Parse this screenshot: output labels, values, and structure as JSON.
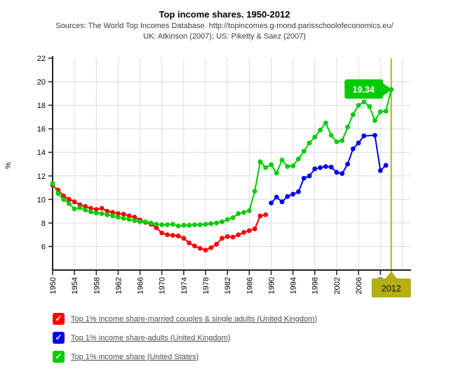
{
  "header": {
    "title": "Top income shares. 1950-2012",
    "subtitle1": "Sources: The World Top Incomes Database. http://topincomes.g-mond.parisschoolofeconomics.eu/",
    "subtitle2": "UK: Atkinson (2007); US: Piketty & Saez (2007)"
  },
  "chart_data": {
    "type": "line",
    "title": "Top income shares. 1950-2012",
    "xlabel": "",
    "ylabel": "%",
    "ylim": [
      4,
      22
    ],
    "xlim": [
      1950,
      2015.5
    ],
    "yticks": [
      6,
      8,
      10,
      12,
      14,
      16,
      18,
      20,
      22
    ],
    "xticks": [
      1950,
      1954,
      1958,
      1962,
      1966,
      1970,
      1974,
      1978,
      1982,
      1986,
      1990,
      1994,
      1998,
      2002,
      2006,
      2010
    ],
    "grid_years": [
      1954,
      1958,
      1962,
      1966,
      1970,
      1974,
      1978,
      1982,
      1986,
      1990,
      1994,
      1998,
      2002,
      2006,
      2010,
      2014
    ],
    "grid": true,
    "legend_position": "bottom-left",
    "colors": {
      "grid": "#dcdcdc",
      "axis": "#222222",
      "tick_text": "#000000",
      "marker_line": "#b4af15"
    },
    "series": [
      {
        "name": "Top 1% income share-married couples & single adults (United Kingdom)",
        "id": "uk-married-couples",
        "color": "#ff0000",
        "x": [
          1950,
          1951,
          1952,
          1953,
          1954,
          1955,
          1956,
          1957,
          1958,
          1959,
          1960,
          1961,
          1962,
          1963,
          1964,
          1965,
          1966,
          1967,
          1968,
          1969,
          1970,
          1971,
          1972,
          1973,
          1974,
          1975,
          1976,
          1977,
          1978,
          1979,
          1980,
          1981,
          1982,
          1983,
          1984,
          1985,
          1986,
          1987,
          1988,
          1989
        ],
        "values": [
          11.2,
          10.8,
          10.3,
          10.0,
          9.8,
          9.55,
          9.4,
          9.25,
          9.15,
          9.25,
          9.0,
          8.9,
          8.8,
          8.75,
          8.6,
          8.5,
          8.25,
          8.05,
          7.9,
          7.6,
          7.15,
          7.0,
          6.95,
          6.9,
          6.7,
          6.3,
          6.05,
          5.85,
          5.7,
          5.9,
          6.2,
          6.7,
          6.85,
          6.8,
          7.0,
          7.2,
          7.35,
          7.5,
          8.6,
          8.7
        ]
      },
      {
        "name": "Top 1% income share-adults (United Kingdom)",
        "id": "uk-adults",
        "color": "#0000ee",
        "x": [
          1990,
          1991,
          1992,
          1993,
          1994,
          1995,
          1996,
          1997,
          1998,
          1999,
          2000,
          2001,
          2002,
          2003,
          2004,
          2005,
          2006,
          2007,
          2009,
          2010,
          2011
        ],
        "values": [
          9.7,
          10.2,
          9.8,
          10.25,
          10.45,
          10.65,
          11.8,
          12.0,
          12.6,
          12.7,
          12.8,
          12.75,
          12.3,
          12.2,
          13.0,
          14.3,
          14.8,
          15.4,
          15.45,
          12.45,
          12.9
        ]
      },
      {
        "name": "Top 1% income share (United States)",
        "id": "us",
        "color": "#00cc00",
        "x": [
          1950,
          1951,
          1952,
          1953,
          1954,
          1955,
          1956,
          1957,
          1958,
          1959,
          1960,
          1961,
          1962,
          1963,
          1964,
          1965,
          1966,
          1967,
          1968,
          1969,
          1970,
          1971,
          1972,
          1973,
          1974,
          1975,
          1976,
          1977,
          1978,
          1979,
          1980,
          1981,
          1982,
          1983,
          1984,
          1985,
          1986,
          1987,
          1988,
          1989,
          1990,
          1991,
          1992,
          1993,
          1994,
          1995,
          1996,
          1997,
          1998,
          1999,
          2000,
          2001,
          2002,
          2003,
          2004,
          2005,
          2006,
          2007,
          2008,
          2009,
          2010,
          2011,
          2012
        ],
        "values": [
          11.35,
          10.5,
          10.0,
          9.65,
          9.2,
          9.3,
          9.1,
          8.95,
          8.85,
          8.8,
          8.7,
          8.6,
          8.5,
          8.4,
          8.3,
          8.2,
          8.1,
          8.1,
          8.0,
          7.9,
          7.85,
          7.85,
          7.9,
          7.75,
          7.8,
          7.8,
          7.85,
          7.85,
          7.9,
          7.95,
          8.0,
          8.1,
          8.3,
          8.45,
          8.8,
          8.9,
          9.05,
          10.7,
          13.2,
          12.7,
          12.95,
          12.25,
          13.35,
          12.8,
          12.85,
          13.45,
          14.1,
          14.8,
          15.3,
          15.9,
          16.5,
          15.45,
          14.9,
          15.0,
          16.15,
          17.2,
          18.0,
          18.3,
          17.9,
          16.7,
          17.45,
          17.5,
          19.34
        ]
      }
    ],
    "annotations": {
      "point_callout": {
        "label": "19.34",
        "year": 2012,
        "value": 19.34,
        "fill": "#00cc00",
        "text_color": "#ffffff"
      },
      "vertical_marker": {
        "label": "2012",
        "year": 2012,
        "line_color": "#b4af15",
        "badge_fill": "#b4af15",
        "text_color": "#111111"
      }
    }
  },
  "legend": {
    "items": [
      {
        "label": "Top 1% income share-married couples & single adults (United Kingdom)",
        "color": "#ff0000",
        "check": "✓"
      },
      {
        "label": "Top 1% income share-adults (United Kingdom)",
        "color": "#0000ee",
        "check": "✓"
      },
      {
        "label": "Top 1% income share (United States)",
        "color": "#00cc00",
        "check": "✓"
      }
    ]
  }
}
